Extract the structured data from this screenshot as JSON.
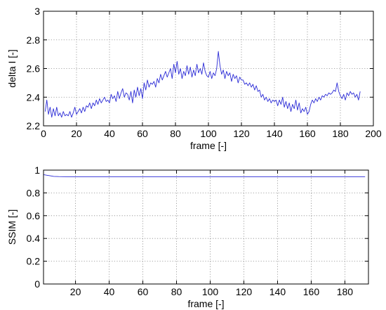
{
  "chart_data": [
    {
      "type": "line",
      "xlabel": "frame [-]",
      "ylabel": "delta I [-]",
      "xlim": [
        0,
        200
      ],
      "ylim": [
        2.2,
        3
      ],
      "xticks": [
        0,
        20,
        40,
        60,
        80,
        100,
        120,
        140,
        160,
        180,
        200
      ],
      "yticks": [
        2.2,
        2.4,
        2.6,
        2.8,
        3
      ],
      "yticklabels": [
        "2.2",
        "2.4",
        "2.6",
        "2.8",
        "3"
      ],
      "grid": true,
      "color": "#2b2bd6",
      "series": [
        {
          "x": [
            1,
            2,
            3,
            4,
            5,
            6,
            7,
            8,
            9,
            10,
            11,
            12,
            13,
            14,
            15,
            16,
            17,
            18,
            19,
            20,
            21,
            22,
            23,
            24,
            25,
            26,
            27,
            28,
            29,
            30,
            31,
            32,
            33,
            34,
            35,
            36,
            37,
            38,
            39,
            40,
            41,
            42,
            43,
            44,
            45,
            46,
            47,
            48,
            49,
            50,
            51,
            52,
            53,
            54,
            55,
            56,
            57,
            58,
            59,
            60,
            61,
            62,
            63,
            64,
            65,
            66,
            67,
            68,
            69,
            70,
            71,
            72,
            73,
            74,
            75,
            76,
            77,
            78,
            79,
            80,
            81,
            82,
            83,
            84,
            85,
            86,
            87,
            88,
            89,
            90,
            91,
            92,
            93,
            94,
            95,
            96,
            97,
            98,
            99,
            100,
            101,
            102,
            103,
            104,
            105,
            106,
            107,
            108,
            109,
            110,
            111,
            112,
            113,
            114,
            115,
            116,
            117,
            118,
            119,
            120,
            121,
            122,
            123,
            124,
            125,
            126,
            127,
            128,
            129,
            130,
            131,
            132,
            133,
            134,
            135,
            136,
            137,
            138,
            139,
            140,
            141,
            142,
            143,
            144,
            145,
            146,
            147,
            148,
            149,
            150,
            151,
            152,
            153,
            154,
            155,
            156,
            157,
            158,
            159,
            160,
            161,
            162,
            163,
            164,
            165,
            166,
            167,
            168,
            169,
            170,
            171,
            172,
            173,
            174,
            175,
            176,
            177,
            178,
            179,
            180,
            181,
            182,
            183,
            184,
            185,
            186,
            187,
            188,
            189,
            190,
            191,
            192
          ],
          "y": [
            2.3,
            2.38,
            2.28,
            2.33,
            2.26,
            2.32,
            2.27,
            2.33,
            2.27,
            2.29,
            2.26,
            2.3,
            2.27,
            2.28,
            2.27,
            2.3,
            2.26,
            2.29,
            2.33,
            2.28,
            2.3,
            2.32,
            2.29,
            2.33,
            2.3,
            2.34,
            2.33,
            2.36,
            2.32,
            2.36,
            2.34,
            2.38,
            2.35,
            2.39,
            2.36,
            2.38,
            2.4,
            2.37,
            2.38,
            2.36,
            2.42,
            2.39,
            2.41,
            2.37,
            2.44,
            2.39,
            2.43,
            2.46,
            2.4,
            2.43,
            2.42,
            2.38,
            2.44,
            2.36,
            2.45,
            2.4,
            2.47,
            2.41,
            2.46,
            2.39,
            2.5,
            2.45,
            2.52,
            2.47,
            2.5,
            2.49,
            2.51,
            2.47,
            2.53,
            2.5,
            2.56,
            2.52,
            2.55,
            2.58,
            2.54,
            2.57,
            2.6,
            2.53,
            2.63,
            2.57,
            2.65,
            2.56,
            2.6,
            2.53,
            2.58,
            2.55,
            2.62,
            2.56,
            2.61,
            2.54,
            2.59,
            2.55,
            2.63,
            2.57,
            2.6,
            2.56,
            2.64,
            2.58,
            2.55,
            2.54,
            2.58,
            2.53,
            2.57,
            2.55,
            2.6,
            2.72,
            2.62,
            2.56,
            2.59,
            2.53,
            2.58,
            2.55,
            2.57,
            2.51,
            2.56,
            2.53,
            2.55,
            2.5,
            2.54,
            2.52,
            2.52,
            2.49,
            2.5,
            2.48,
            2.5,
            2.47,
            2.49,
            2.45,
            2.48,
            2.44,
            2.45,
            2.4,
            2.42,
            2.38,
            2.4,
            2.37,
            2.39,
            2.36,
            2.38,
            2.37,
            2.38,
            2.34,
            2.38,
            2.35,
            2.4,
            2.33,
            2.37,
            2.32,
            2.36,
            2.3,
            2.35,
            2.32,
            2.38,
            2.31,
            2.36,
            2.29,
            2.32,
            2.3,
            2.33,
            2.28,
            2.3,
            2.35,
            2.38,
            2.36,
            2.39,
            2.37,
            2.4,
            2.38,
            2.41,
            2.4,
            2.42,
            2.41,
            2.43,
            2.42,
            2.43,
            2.45,
            2.44,
            2.5,
            2.44,
            2.41,
            2.39,
            2.42,
            2.38,
            2.43,
            2.41,
            2.44,
            2.42,
            2.43,
            2.4,
            2.42,
            2.38,
            2.44
          ]
        }
      ]
    },
    {
      "type": "line",
      "xlabel": "frame [-]",
      "ylabel": "SSIM [-]",
      "xlim": [
        1,
        194
      ],
      "ylim": [
        0,
        1
      ],
      "xticks": [
        20,
        40,
        60,
        80,
        100,
        120,
        140,
        160,
        180
      ],
      "yticks": [
        0,
        0.2,
        0.4,
        0.6,
        0.8,
        1
      ],
      "yticklabels": [
        "0",
        "0.2",
        "0.4",
        "0.6",
        "0.8",
        "1"
      ],
      "grid": true,
      "color": "#2b2bd6",
      "series": [
        {
          "x": [
            1,
            3,
            5,
            7,
            10,
            15,
            50,
            100,
            150,
            192
          ],
          "y": [
            0.96,
            0.955,
            0.95,
            0.945,
            0.943,
            0.942,
            0.942,
            0.942,
            0.942,
            0.942
          ]
        }
      ]
    }
  ]
}
